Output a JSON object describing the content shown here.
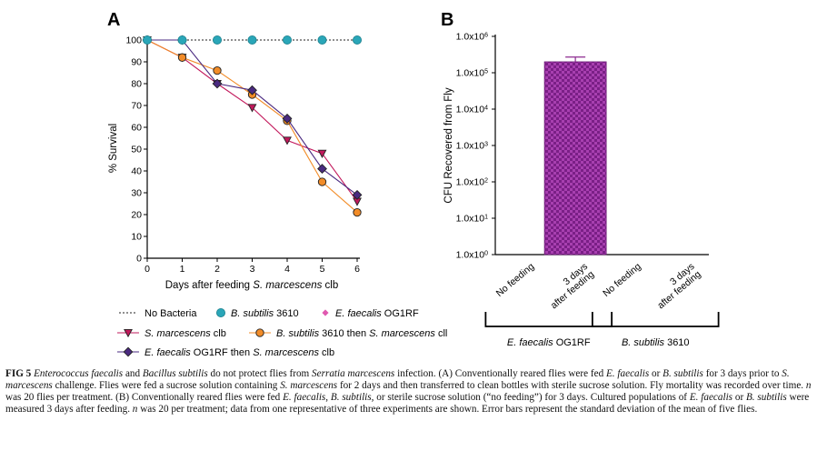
{
  "panelA": {
    "letter": "A",
    "ylabel": "% Survival",
    "xlabel_prefix": "Days after feeding ",
    "xlabel_italic": "S. marcescens",
    "xlabel_suffix": " clb",
    "legend": [
      {
        "key": "nobact",
        "pre": "No Bacteria",
        "ital": "",
        "post": ""
      },
      {
        "key": "bsub",
        "pre": "",
        "ital": "B. subtilis",
        "post": " 3610"
      },
      {
        "key": "efae",
        "pre": "",
        "ital": "E. faecalis",
        "post": " OG1RF"
      },
      {
        "key": "smar",
        "pre": "",
        "ital": "S. marcescens",
        "post": " clb"
      },
      {
        "key": "bsub_sm",
        "pre": "",
        "ital": "B. subtilis",
        "post": " 3610 then ",
        "ital2": "S. marcescens",
        "post2": " cll"
      },
      {
        "key": "efae_sm",
        "pre": "",
        "ital": "E. faecalis",
        "post": " OG1RF then ",
        "ital2": "S. marcescens",
        "post2": " clb"
      }
    ]
  },
  "panelB": {
    "letter": "B",
    "ylabel": "CFU Recovered from Fly",
    "categories": [
      "No feeding",
      "3 days after feeding",
      "No feeding",
      "3 days after feeding"
    ],
    "groups": [
      {
        "label_ital": "E. faecalis",
        "label_post": " OG1RF"
      },
      {
        "label_ital": "B. subtilis",
        "label_post": " 3610"
      }
    ],
    "yticks": [
      {
        "base": "1.0x10",
        "exp": "0"
      },
      {
        "base": "1.0x10",
        "exp": "1"
      },
      {
        "base": "1.0x10",
        "exp": "2"
      },
      {
        "base": "1.0x10",
        "exp": "3"
      },
      {
        "base": "1.0x10",
        "exp": "4"
      },
      {
        "base": "1.0x10",
        "exp": "5"
      },
      {
        "base": "1.0x10",
        "exp": "6"
      }
    ]
  },
  "chart_data": [
    {
      "type": "line",
      "title": "",
      "xlabel": "Days after feeding S. marcescens clb",
      "ylabel": "% Survival",
      "xlim": [
        0,
        6
      ],
      "ylim": [
        0,
        100
      ],
      "x": [
        0,
        1,
        2,
        3,
        4,
        5,
        6
      ],
      "xticks": [
        0,
        1,
        2,
        3,
        4,
        5,
        6
      ],
      "yticks": [
        0,
        10,
        20,
        30,
        40,
        50,
        60,
        70,
        80,
        90,
        100
      ],
      "legend_position": "below",
      "series": [
        {
          "name": "No Bacteria",
          "key": "nobact",
          "color": "#222222",
          "values": [
            100,
            100,
            100,
            100,
            100,
            100,
            100
          ]
        },
        {
          "name": "B. subtilis 3610",
          "key": "bsub",
          "color": "#2aa6b8",
          "values": [
            100,
            100,
            100,
            100,
            100,
            100,
            100
          ]
        },
        {
          "name": "E. faecalis OG1RF",
          "key": "efae",
          "color": "#e05ab0",
          "values": [
            100,
            100,
            100,
            100,
            100,
            100,
            100
          ]
        },
        {
          "name": "S. marcescens clb",
          "key": "smar",
          "color": "#c2185b",
          "values": [
            100,
            92,
            80,
            69,
            54,
            48,
            26
          ]
        },
        {
          "name": "B. subtilis 3610 then S. marcescens cll",
          "key": "bsub_sm",
          "color": "#f28c28",
          "values": [
            100,
            92,
            86,
            75,
            63,
            35,
            21
          ]
        },
        {
          "name": "E. faecalis OG1RF then S. marcescens clb",
          "key": "efae_sm",
          "color": "#4a2a80",
          "values": [
            100,
            100,
            80,
            77,
            64,
            41,
            29
          ]
        }
      ]
    },
    {
      "type": "bar",
      "title": "",
      "xlabel": "",
      "ylabel": "CFU Recovered from Fly",
      "yscale": "log",
      "ylim": [
        1,
        1000000
      ],
      "categories": [
        "E. faecalis OG1RF No feeding",
        "E. faecalis OG1RF 3 days after feeding",
        "B. subtilis 3610 No feeding",
        "B. subtilis 3610 3 days after feeding"
      ],
      "values": [
        null,
        200000,
        null,
        null
      ],
      "error_upper": [
        null,
        270000,
        null,
        null
      ],
      "bar_color": "#8b2a8f"
    }
  ],
  "caption": [
    {
      "t": "FIG 5",
      "c": "fig"
    },
    {
      "t": "  ",
      "c": ""
    },
    {
      "t": "Enterococcus faecalis",
      "c": "ital"
    },
    {
      "t": " and ",
      "c": ""
    },
    {
      "t": "Bacillus subtilis",
      "c": "ital"
    },
    {
      "t": " do not protect flies from ",
      "c": ""
    },
    {
      "t": "Serratia marcescens",
      "c": "ital"
    },
    {
      "t": " infection. (A) Conventionally reared flies were fed ",
      "c": ""
    },
    {
      "t": "E. faecalis",
      "c": "ital"
    },
    {
      "t": " or ",
      "c": ""
    },
    {
      "t": "B. subtilis",
      "c": "ital"
    },
    {
      "t": " for 3 days prior to ",
      "c": ""
    },
    {
      "t": "S. marcescens",
      "c": "ital"
    },
    {
      "t": " challenge. Flies were fed a sucrose solution containing ",
      "c": ""
    },
    {
      "t": "S. marcescens",
      "c": "ital"
    },
    {
      "t": " for 2 days and then transferred to clean bottles with sterile sucrose solution. Fly mortality was recorded over time. ",
      "c": ""
    },
    {
      "t": "n",
      "c": "ital"
    },
    {
      "t": " was 20 flies per treatment. (B) Conventionally reared flies were fed ",
      "c": ""
    },
    {
      "t": "E. faecalis",
      "c": "ital"
    },
    {
      "t": ", ",
      "c": ""
    },
    {
      "t": "B. subtilis",
      "c": "ital"
    },
    {
      "t": ", or sterile sucrose solution (“no feeding”) for 3 days. Cultured populations of ",
      "c": ""
    },
    {
      "t": "E. faecalis",
      "c": "ital"
    },
    {
      "t": " or ",
      "c": ""
    },
    {
      "t": "B. subtilis",
      "c": "ital"
    },
    {
      "t": " were measured 3 days after feeding. ",
      "c": ""
    },
    {
      "t": "n",
      "c": "ital"
    },
    {
      "t": " was 20 per treatment; data from one representative of three experiments are shown. Error bars represent the standard deviation of the mean of five flies.",
      "c": ""
    }
  ]
}
